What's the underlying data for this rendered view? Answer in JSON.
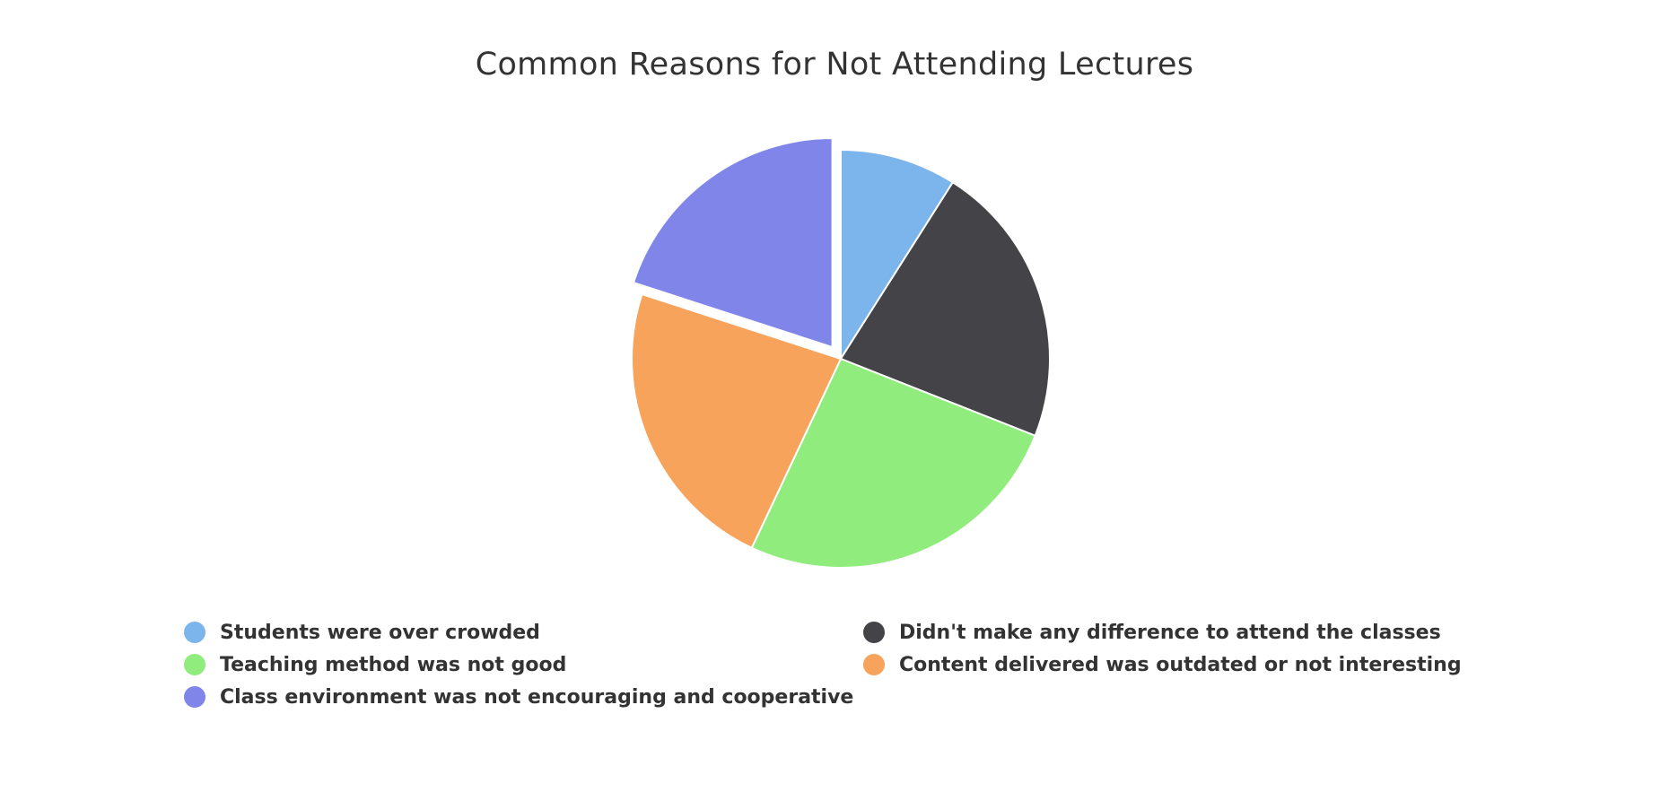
{
  "chart_data": {
    "type": "pie",
    "title": "Common Reasons for Not Attending Lectures",
    "categories": [
      "Students were over crowded",
      "Didn't make any difference to attend the classes",
      "Teaching method was not good",
      "Content delivered was outdated or not interesting",
      "Class environment was not encouraging and cooperative"
    ],
    "values": [
      9,
      22,
      26,
      23,
      20
    ],
    "colors": [
      "#7cb5ec",
      "#434348",
      "#90ed7d",
      "#f7a35c",
      "#8085e9"
    ],
    "exploded_index": 4,
    "legend_position": "bottom"
  }
}
